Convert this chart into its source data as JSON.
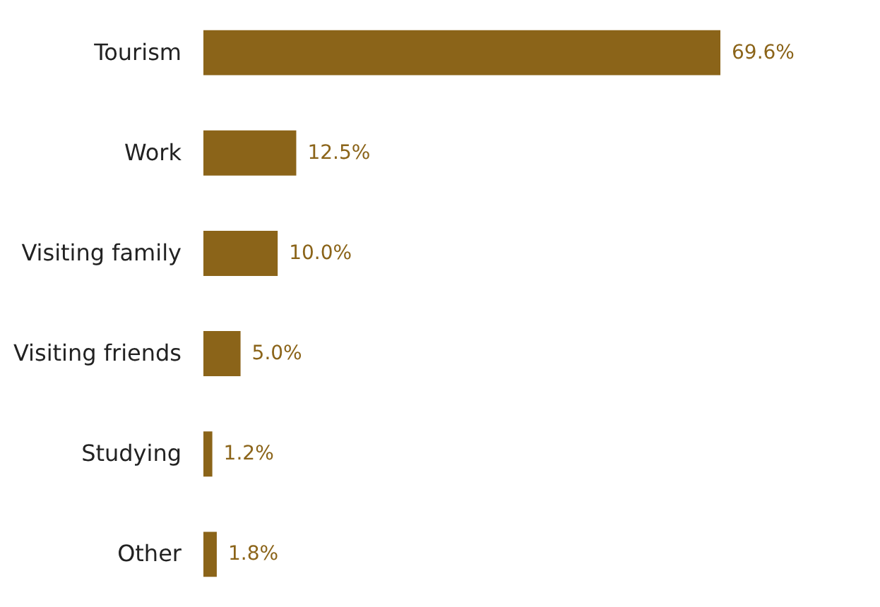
{
  "chart_data": {
    "type": "bar",
    "orientation": "horizontal",
    "categories": [
      "Tourism",
      "Work",
      "Visiting family",
      "Visiting friends",
      "Studying",
      "Other"
    ],
    "values": [
      69.6,
      12.5,
      10.0,
      5.0,
      1.2,
      1.8
    ],
    "value_labels": [
      "69.6%",
      "12.5%",
      "10.0%",
      "5.0%",
      "1.2%",
      "1.8%"
    ],
    "color": "#8b6419"
  }
}
